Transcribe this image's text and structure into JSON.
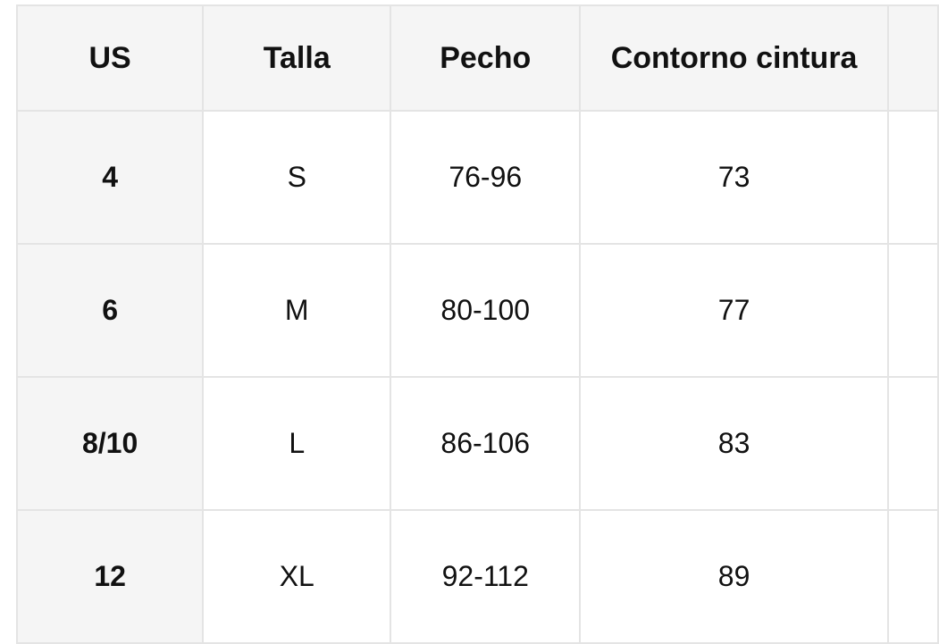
{
  "table": {
    "headers": [
      "US",
      "Talla",
      "Pecho",
      "Contorno cintura",
      ""
    ],
    "rows": [
      [
        "4",
        "S",
        "76-96",
        "73",
        ""
      ],
      [
        "6",
        "M",
        "80-100",
        "77",
        ""
      ],
      [
        "8/10",
        "L",
        "86-106",
        "83",
        ""
      ],
      [
        "12",
        "XL",
        "92-112",
        "89",
        ""
      ]
    ]
  }
}
